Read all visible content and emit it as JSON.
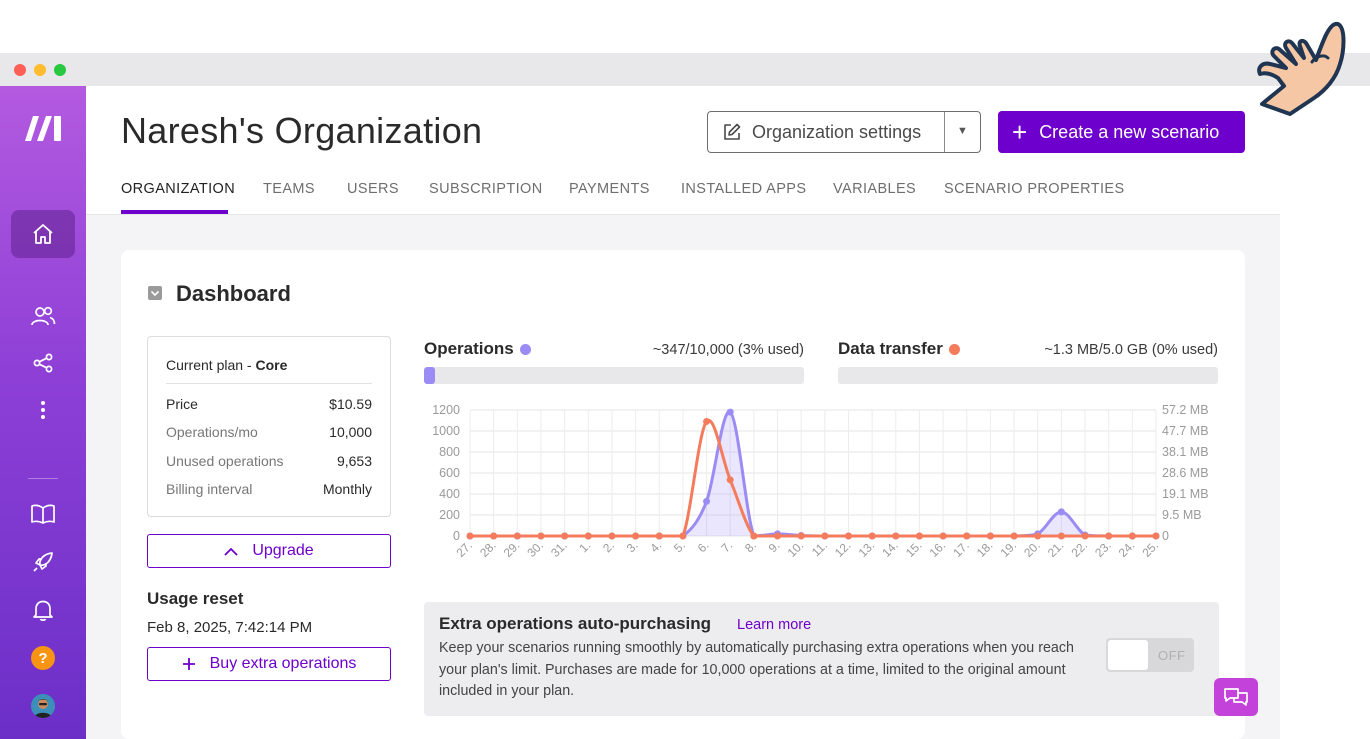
{
  "window": {
    "dot_colors": [
      "#ff5f57",
      "#febc2e",
      "#28c840"
    ]
  },
  "sidebar": {
    "items": [
      {
        "name": "home",
        "icon": "home-icon",
        "active": true
      },
      {
        "name": "teams",
        "icon": "users-icon"
      },
      {
        "name": "connections",
        "icon": "share-icon"
      },
      {
        "name": "more",
        "icon": "more-vertical-icon"
      },
      {
        "name": "docs",
        "icon": "book-icon"
      },
      {
        "name": "launch",
        "icon": "rocket-icon"
      },
      {
        "name": "notifications",
        "icon": "bell-icon"
      },
      {
        "name": "help",
        "icon": "help-icon",
        "label": "?"
      },
      {
        "name": "profile",
        "icon": "avatar"
      }
    ]
  },
  "header": {
    "title": "Naresh's Organization",
    "settings_label": "Organization settings",
    "create_label": "Create a new scenario",
    "create_plus": "+"
  },
  "tabs": [
    "ORGANIZATION",
    "TEAMS",
    "USERS",
    "SUBSCRIPTION",
    "PAYMENTS",
    "INSTALLED APPS",
    "VARIABLES",
    "SCENARIO PROPERTIES"
  ],
  "active_tab": "ORGANIZATION",
  "dashboard": {
    "title": "Dashboard",
    "plan": {
      "label": "Current plan - ",
      "name": "Core",
      "rows": [
        {
          "key": "Price",
          "value": "$10.59"
        },
        {
          "key": "Operations/mo",
          "value": "10,000"
        },
        {
          "key": "Unused operations",
          "value": "9,653"
        },
        {
          "key": "Billing interval",
          "value": "Monthly"
        }
      ]
    },
    "upgrade_label": "Upgrade",
    "usage_reset_title": "Usage reset",
    "usage_reset_date": "Feb 8, 2025, 7:42:14 PM",
    "buy_extra_label": "Buy extra operations",
    "operations": {
      "title": "Operations",
      "value": "~347/10,000 (3% used)",
      "fraction": 0.03,
      "color": "#9b8bf4"
    },
    "data_transfer": {
      "title": "Data transfer",
      "value": "~1.3 MB/5.0 GB (0% used)",
      "fraction": 0.0,
      "color": "#f47c5c"
    },
    "extra_ops": {
      "title": "Extra operations auto-purchasing",
      "link": "Learn more",
      "description": "Keep your scenarios running smoothly by automatically purchasing extra operations when you reach your plan's limit. Purchases are made for 10,000 operations at a time, limited to the original amount included in your plan.",
      "toggle_label": "OFF",
      "enabled": false
    }
  },
  "chart_data": {
    "type": "line",
    "categories": [
      "27.",
      "28.",
      "29.",
      "30.",
      "31.",
      "1.",
      "2.",
      "3.",
      "4.",
      "5.",
      "6.",
      "7.",
      "8.",
      "9.",
      "10.",
      "11.",
      "12.",
      "13.",
      "14.",
      "15.",
      "16.",
      "17.",
      "18.",
      "19.",
      "20.",
      "21.",
      "22.",
      "23.",
      "24.",
      "25."
    ],
    "y_left": {
      "ticks": [
        "0",
        "200",
        "400",
        "600",
        "800",
        "1000",
        "1200"
      ],
      "range": [
        0,
        1200
      ]
    },
    "y_right": {
      "ticks": [
        "0",
        "9.5 MB",
        "19.1 MB",
        "28.6 MB",
        "38.1 MB",
        "47.7 MB",
        "57.2 MB"
      ],
      "range": [
        0,
        57.2
      ]
    },
    "series": [
      {
        "axis": "left",
        "color": "#9b8bf4",
        "values": [
          0,
          0,
          0,
          0,
          0,
          0,
          0,
          0,
          0,
          0,
          330,
          1180,
          0,
          20,
          5,
          0,
          0,
          0,
          0,
          0,
          0,
          0,
          0,
          0,
          20,
          230,
          10,
          0,
          0,
          0
        ]
      },
      {
        "axis": "right",
        "color": "#f47c5c",
        "values": [
          0,
          0,
          0,
          0,
          0,
          0,
          0,
          0,
          0,
          0,
          52,
          25.5,
          0,
          0,
          0,
          0,
          0,
          0,
          0,
          0,
          0,
          0,
          0,
          0,
          0,
          0,
          0,
          0,
          0,
          0
        ]
      }
    ]
  }
}
